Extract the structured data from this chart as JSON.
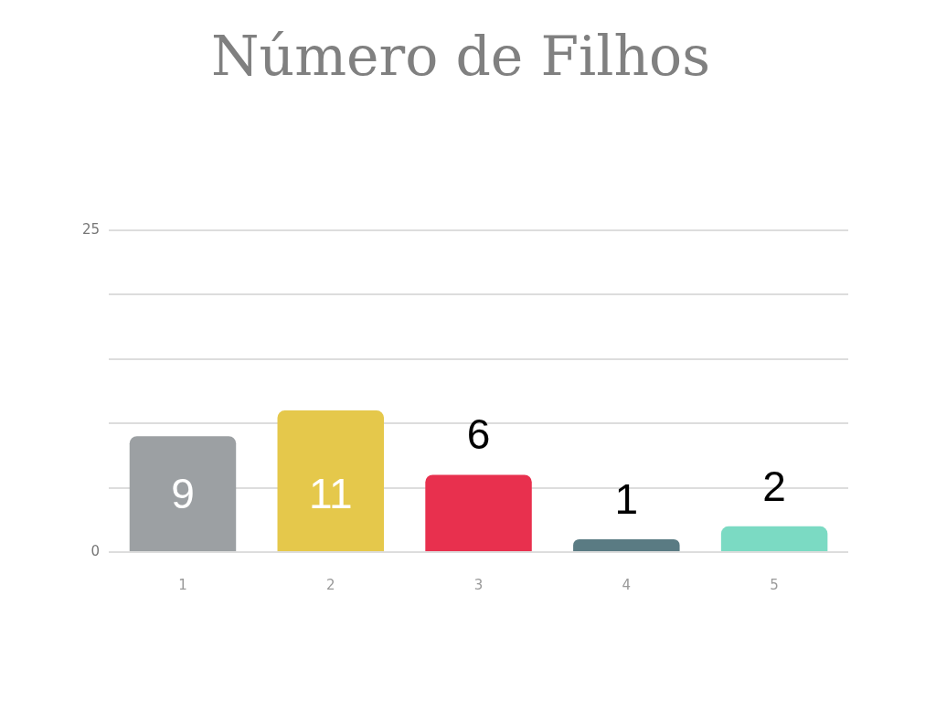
{
  "chart_data": {
    "type": "bar",
    "title": "Número de Filhos",
    "categories": [
      "1",
      "2",
      "3",
      "4",
      "5"
    ],
    "values": [
      9,
      11,
      6,
      1,
      2
    ],
    "colors": [
      "#9ca0a3",
      "#e5c84b",
      "#e8304e",
      "#5a7b83",
      "#7bdac3"
    ],
    "ylim": [
      0,
      25
    ],
    "yticks": [
      0,
      {
        "value": 5,
        "label": null
      },
      {
        "value": 10,
        "label": null
      },
      {
        "value": 15,
        "label": null
      },
      {
        "value": 20,
        "label": null
      },
      25
    ],
    "grid": "y",
    "data_labels": true
  }
}
